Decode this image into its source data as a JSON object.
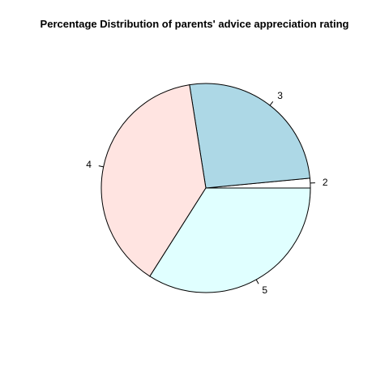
{
  "chart_data": {
    "type": "pie",
    "title": "Percentage Distribution of parents' advice appreciation rating",
    "categories": [
      "2",
      "3",
      "4",
      "5"
    ],
    "values": [
      1.5,
      26.0,
      38.5,
      34.0
    ],
    "colors": [
      "#ffffff",
      "#add8e6",
      "#ffe4e1",
      "#e0ffff"
    ],
    "start": "counter-clockwise from 3 o'clock",
    "legend": "none"
  }
}
